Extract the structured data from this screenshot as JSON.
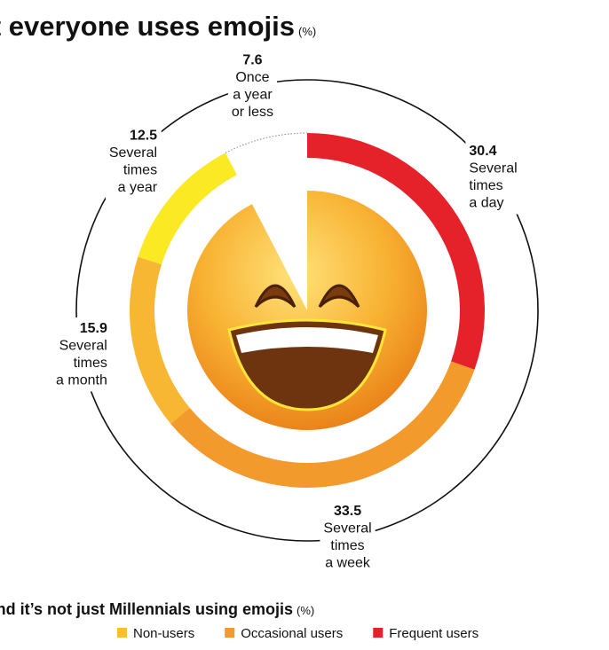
{
  "chart_data": {
    "type": "donut",
    "title": "Almost everyone uses emojis",
    "unit": "(%)",
    "categories": [
      [
        "Several",
        "times",
        "a day"
      ],
      [
        "Several",
        "times",
        "a week"
      ],
      [
        "Several",
        "times",
        "a month"
      ],
      [
        "Several",
        "times",
        "a year"
      ],
      [
        "Once",
        "a year",
        "or less"
      ]
    ],
    "values": [
      30.4,
      33.5,
      15.9,
      12.5,
      7.6
    ],
    "colors": [
      "#e52229",
      "#f39a2c",
      "#f8b733",
      "#fbe923",
      "#ffffff"
    ]
  },
  "footer": {
    "title": "... And it’s not just Millennials using emojis",
    "unit": "(%)",
    "legend": [
      {
        "label": "Non-users",
        "color": "#f8c12a"
      },
      {
        "label": "Occasional users",
        "color": "#f39a2c"
      },
      {
        "label": "Frequent users",
        "color": "#e52229"
      }
    ]
  }
}
